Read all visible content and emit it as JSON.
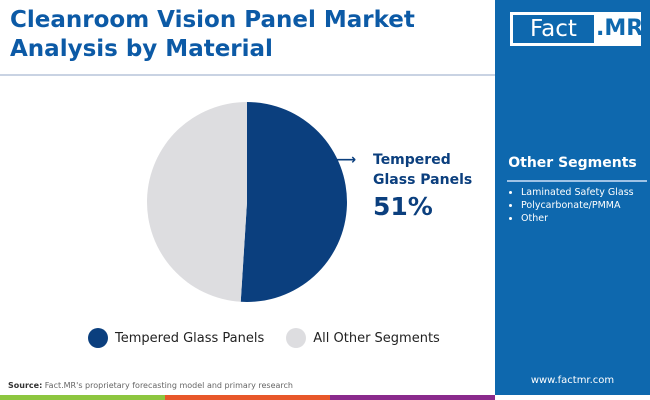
{
  "title": "Cleanroom Vision Panel Market Analysis by Material",
  "logo": {
    "part1": "Fact",
    "part2": ".MR"
  },
  "other_segments": {
    "heading": "Other Segments",
    "items": [
      "Laminated Safety Glass",
      "Polycarbonate/PMMA",
      "Other"
    ]
  },
  "website": "www.factmr.com",
  "source": {
    "label": "Source:",
    "text": " Fact.MR's proprietary forecasting model and primary research"
  },
  "colors": {
    "primary": "#0b3f7e",
    "other": "#dddde0",
    "panel": "#0e68ae",
    "title": "#0c5aa6"
  },
  "chart_data": {
    "type": "pie",
    "slices": [
      {
        "label": "Tempered Glass Panels",
        "value": 51,
        "color": "#0b3f7e"
      },
      {
        "label": "All Other Segments",
        "value": 49,
        "color": "#dddde0"
      }
    ],
    "callout": {
      "label": "Tempered Glass Panels",
      "value": "51%"
    },
    "legend": [
      "Tempered Glass Panels",
      "All Other Segments"
    ],
    "legend_position": "bottom"
  }
}
